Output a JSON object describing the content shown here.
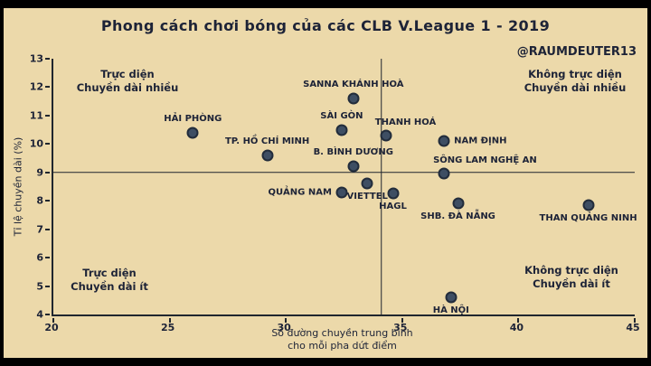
{
  "colors": {
    "background": "#ecd9aa",
    "frame": "#000000",
    "ink": "#20262e",
    "text": "#1d2337",
    "point": "#3e4e63"
  },
  "chart_data": {
    "type": "scatter",
    "title": "Phong cách chơi bóng của các CLB V.League 1 - 2019",
    "watermark": "@RAUMDEUTER13",
    "xlabel_line1": "Số đường chuyền trung bình",
    "xlabel_line2": "cho mỗi pha dứt điểm",
    "ylabel": "Tỉ lệ chuyền dài (%)",
    "xlim": [
      20,
      45
    ],
    "ylim": [
      4,
      13
    ],
    "xticks": [
      20,
      25,
      30,
      35,
      40,
      45
    ],
    "yticks": [
      4,
      5,
      6,
      7,
      8,
      9,
      10,
      11,
      12,
      13
    ],
    "grid": false,
    "reference_lines": {
      "horizontal_y": 9,
      "vertical_x": 34.1
    },
    "quadrant_labels": [
      {
        "position": "top-left",
        "lines": [
          "Trực diện",
          "Chuyền dài nhiều"
        ]
      },
      {
        "position": "top-right",
        "lines": [
          "Không trực diện",
          "Chuyền dài nhiều"
        ]
      },
      {
        "position": "bottom-left",
        "lines": [
          "Trực diện",
          "Chuyền dài ít"
        ]
      },
      {
        "position": "bottom-right",
        "lines": [
          "Không trực diện",
          "Chuyền dài ít"
        ]
      }
    ],
    "points": [
      {
        "label": "HẢI PHÒNG",
        "x": 26.0,
        "y": 10.4,
        "label_pos": "above"
      },
      {
        "label": "TP. HỒ CHÍ MINH",
        "x": 29.2,
        "y": 9.6,
        "label_pos": "above"
      },
      {
        "label": "SANNA KHÁNH HOÀ",
        "x": 32.9,
        "y": 11.6,
        "label_pos": "above"
      },
      {
        "label": "SÀI GÒN",
        "x": 32.4,
        "y": 10.5,
        "label_pos": "above"
      },
      {
        "label": "B. BÌNH DƯƠNG",
        "x": 32.9,
        "y": 9.2,
        "label_pos": "above"
      },
      {
        "label": "QUẢNG NAM",
        "x": 32.4,
        "y": 8.3,
        "label_pos": "left"
      },
      {
        "label": "VIETTEL",
        "x": 33.5,
        "y": 8.6,
        "label_pos": "below"
      },
      {
        "label": "HAGL",
        "x": 34.6,
        "y": 8.25,
        "label_pos": "below"
      },
      {
        "label": "THANH HOÁ",
        "x": 34.3,
        "y": 10.3,
        "label_pos": "above-right"
      },
      {
        "label": "NAM ĐỊNH",
        "x": 36.8,
        "y": 10.1,
        "label_pos": "right"
      },
      {
        "label": "SÔNG LAM NGHỆ AN",
        "x": 36.8,
        "y": 8.95,
        "label_pos": "above-right"
      },
      {
        "label": "SHB. ĐÀ NẴNG",
        "x": 37.4,
        "y": 7.9,
        "label_pos": "below"
      },
      {
        "label": "HÀ NỘI",
        "x": 37.1,
        "y": 4.6,
        "label_pos": "below"
      },
      {
        "label": "THAN QUẢNG NINH",
        "x": 43.0,
        "y": 7.85,
        "label_pos": "below"
      }
    ]
  }
}
